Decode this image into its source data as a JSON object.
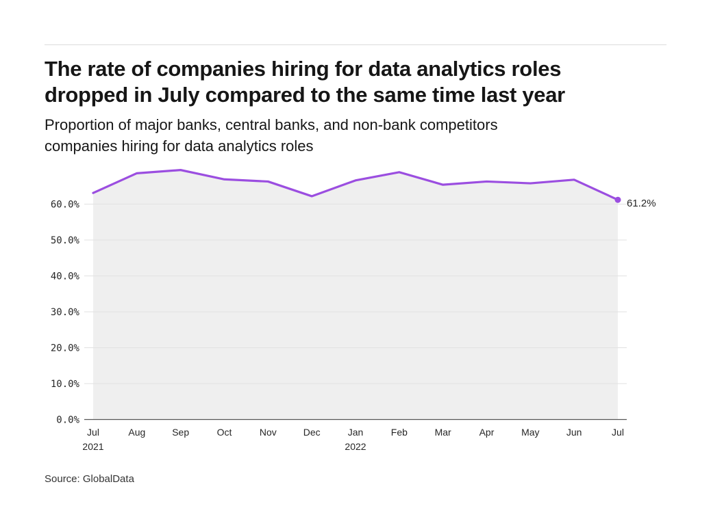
{
  "header": {
    "title_line1": "The rate of companies hiring for data analytics roles",
    "title_line2": "dropped in July compared to the same time last year",
    "subtitle_line1": "Proportion of major banks, central banks, and non-bank competitors",
    "subtitle_line2": "companies hiring for data analytics roles"
  },
  "footer": {
    "source": "Source: GlobalData"
  },
  "colors": {
    "line": "#9b4ee0",
    "area": "#efefef",
    "grid": "#e0e0e0",
    "axis": "#555555"
  },
  "chart_data": {
    "type": "line",
    "title": "The rate of companies hiring for data analytics roles dropped in July compared to the same time last year",
    "subtitle": "Proportion of major banks, central banks, and non-bank competitors companies hiring for data analytics roles",
    "xlabel": "",
    "ylabel": "",
    "categories": [
      "Jul 2021",
      "Aug",
      "Sep",
      "Oct",
      "Nov",
      "Dec",
      "Jan 2022",
      "Feb",
      "Mar",
      "Apr",
      "May",
      "Jun",
      "Jul"
    ],
    "x_tick_labels": [
      {
        "line1": "Jul",
        "line2": "2021"
      },
      {
        "line1": "Aug",
        "line2": ""
      },
      {
        "line1": "Sep",
        "line2": ""
      },
      {
        "line1": "Oct",
        "line2": ""
      },
      {
        "line1": "Nov",
        "line2": ""
      },
      {
        "line1": "Dec",
        "line2": ""
      },
      {
        "line1": "Jan",
        "line2": "2022"
      },
      {
        "line1": "Feb",
        "line2": ""
      },
      {
        "line1": "Mar",
        "line2": ""
      },
      {
        "line1": "Apr",
        "line2": ""
      },
      {
        "line1": "May",
        "line2": ""
      },
      {
        "line1": "Jun",
        "line2": ""
      },
      {
        "line1": "Jul",
        "line2": ""
      }
    ],
    "series": [
      {
        "name": "Proportion of companies hiring for data analytics roles",
        "values": [
          63.1,
          68.6,
          69.5,
          66.9,
          66.3,
          62.2,
          66.6,
          68.9,
          65.4,
          66.3,
          65.8,
          66.8,
          61.2
        ]
      }
    ],
    "y_ticks": [
      0,
      10,
      20,
      30,
      40,
      50,
      60
    ],
    "y_tick_labels": [
      "0.0%",
      "10.0%",
      "20.0%",
      "30.0%",
      "40.0%",
      "50.0%",
      "60.0%"
    ],
    "ylim": [
      0,
      70
    ],
    "grid": true,
    "area_fill": true,
    "annotations": [
      {
        "category": "Jul",
        "index": 12,
        "value": 61.2,
        "label": "61.2%"
      }
    ],
    "legend": "none"
  }
}
